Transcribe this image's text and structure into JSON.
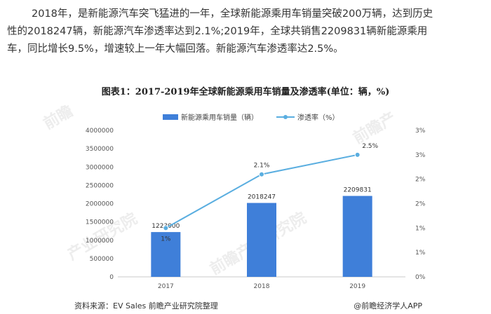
{
  "article": {
    "lines": [
      "2018年，是新能源汽车突飞猛进的一年，全球新能源乘用车销量突破200万辆，达到历史",
      "性的2018247辆，新能源汽车渗透率达到2.1%;2019年，全球共销售2209831辆新能源乘用",
      "车，同比增长9.5%，增速较上一年大幅回落。新能源汽车渗透率达2.5%。"
    ]
  },
  "chart_data": {
    "type": "bar",
    "title": "图表1：2017-2019年全球新能源乘用车销量及渗透率(单位：辆，%)",
    "categories": [
      "2017",
      "2018",
      "2019"
    ],
    "series": [
      {
        "name": "新能源乘用车销量（辆）",
        "type": "bar",
        "axis": "left",
        "values": [
          1223000,
          2018247,
          2209831
        ],
        "labels": [
          "1223000",
          "2018247",
          "2209831"
        ],
        "color": "#3f7fd9"
      },
      {
        "name": "渗透率（%）",
        "type": "line",
        "axis": "right",
        "values": [
          1.0,
          2.1,
          2.5
        ],
        "labels": [
          "1%",
          "2.1%",
          "2.5%"
        ],
        "color": "#5aaee0"
      }
    ],
    "y_left": {
      "min": 0,
      "max": 4000000,
      "ticks": [
        "0",
        "500000",
        "1000000",
        "1500000",
        "2000000",
        "2500000",
        "3000000",
        "3500000",
        "4000000"
      ]
    },
    "y_right": {
      "min": 0,
      "max": 3,
      "ticks": [
        "0%",
        "1%",
        "1%",
        "2%",
        "2%",
        "3%",
        "3%"
      ]
    },
    "legend_position": "top",
    "grid": false
  },
  "footer": {
    "source": "资料来源：EV Sales 前瞻产业研究院整理",
    "brand": "@前瞻经济学人APP"
  }
}
